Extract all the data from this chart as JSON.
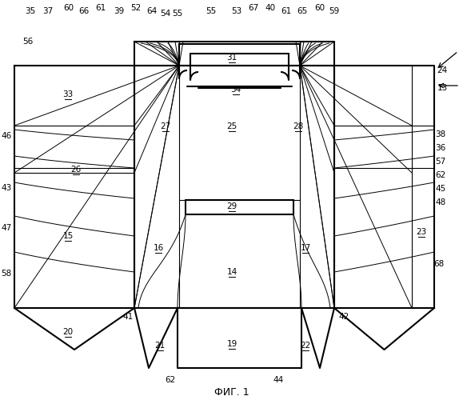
{
  "bg_color": "#ffffff",
  "line_color": "#000000",
  "fig_label": "ФИГ. 1",
  "label_fontsize": 7.5,
  "fig_fontsize": 9,
  "figsize": [
    5.74,
    5.0
  ],
  "dpi": 100,
  "lw_thick": 1.5,
  "lw_thin": 0.8,
  "lw_curve": 0.7
}
